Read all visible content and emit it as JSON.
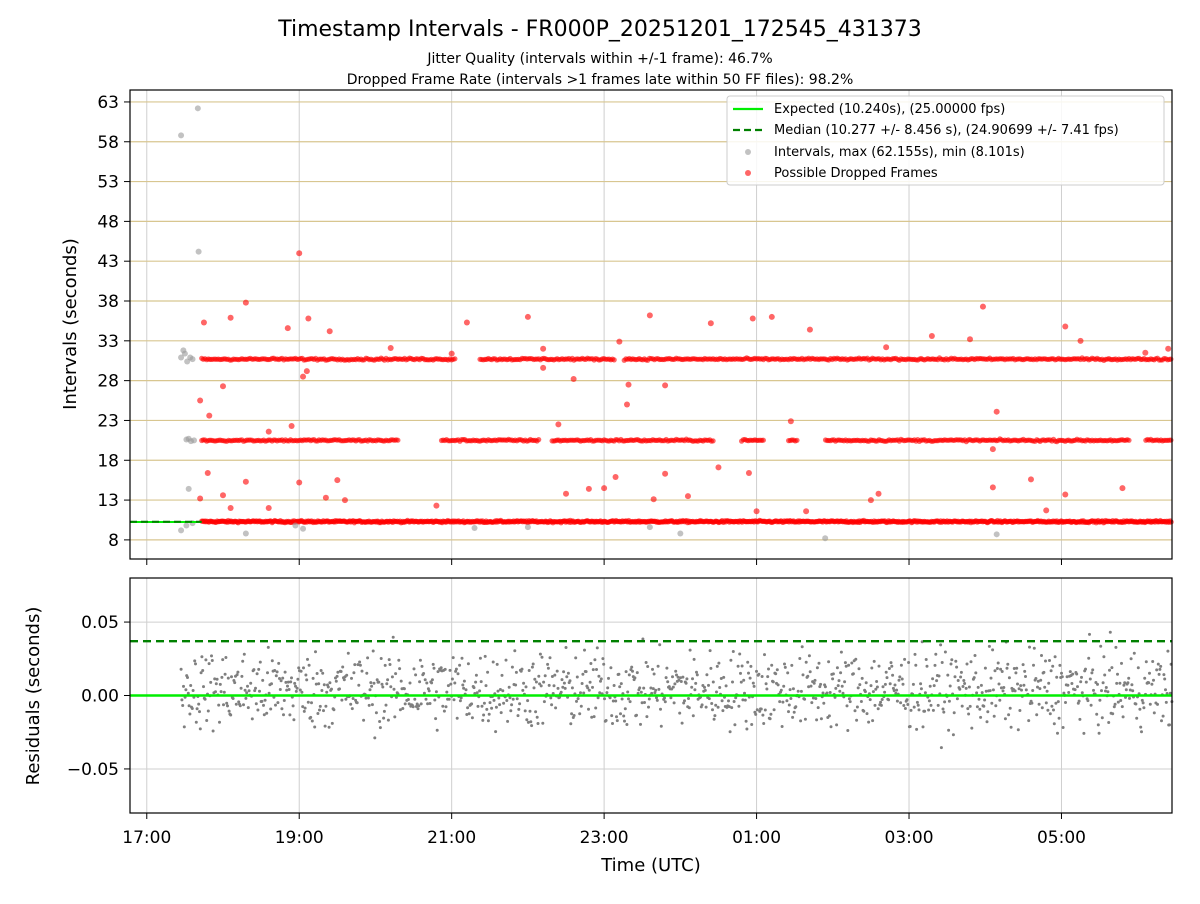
{
  "chart_data": {
    "type": "scatter",
    "title": "Timestamp Intervals - FR000P_20251201_172545_431373",
    "subtitle_lines": [
      "Jitter Quality (intervals within +/-1 frame): 46.7%",
      "Dropped Frame Rate (intervals >1 frames late within 50 FF files): 98.2%"
    ],
    "xlabel": "Time (UTC)",
    "x_unit": "hours since 17:00 UTC",
    "xlim": [
      -0.22,
      13.45
    ],
    "x_ticks": [
      {
        "value": 0,
        "label": "17:00"
      },
      {
        "value": 2,
        "label": "19:00"
      },
      {
        "value": 4,
        "label": "21:00"
      },
      {
        "value": 6,
        "label": "23:00"
      },
      {
        "value": 8,
        "label": "01:00"
      },
      {
        "value": 10,
        "label": "03:00"
      },
      {
        "value": 12,
        "label": "05:00"
      }
    ],
    "top_panel": {
      "ylabel": "Intervals (seconds)",
      "ylim": [
        5.6,
        64.5
      ],
      "y_ticks": [
        8,
        13,
        18,
        23,
        28,
        33,
        38,
        43,
        48,
        53,
        58,
        63
      ],
      "grid_color": "#d8c690",
      "legend_position": "top-right",
      "legend": [
        {
          "label": "Expected (10.240s), (25.00000 fps)",
          "style": "solid-line",
          "color": "#00ee00"
        },
        {
          "label": "Median (10.277 +/- 8.456 s), (24.90699 +/- 7.41 fps)",
          "style": "dashed-line",
          "color": "#008000"
        },
        {
          "label": "Intervals, max (62.155s), min (8.101s)",
          "style": "marker",
          "color": "#999999"
        },
        {
          "label": "Possible Dropped Frames",
          "style": "marker",
          "color": "#ff0000"
        }
      ],
      "expected_interval": 10.24,
      "median_interval": 10.277,
      "dropped_frame_bands": [
        10.3,
        20.5,
        30.7
      ],
      "dropped_frames_start_x": 0.72,
      "gray_intervals": [
        {
          "x": 0.45,
          "y": 58.8
        },
        {
          "x": 0.67,
          "y": 62.2
        },
        {
          "x": 0.68,
          "y": 44.2
        },
        {
          "x": 0.55,
          "y": 14.4
        },
        {
          "x": 0.52,
          "y": 20.6
        },
        {
          "x": 0.55,
          "y": 20.7
        },
        {
          "x": 0.58,
          "y": 20.4
        },
        {
          "x": 0.62,
          "y": 20.5
        },
        {
          "x": 0.45,
          "y": 30.9
        },
        {
          "x": 0.5,
          "y": 31.4
        },
        {
          "x": 0.53,
          "y": 30.4
        },
        {
          "x": 0.57,
          "y": 30.9
        },
        {
          "x": 0.48,
          "y": 31.8
        },
        {
          "x": 0.6,
          "y": 30.7
        },
        {
          "x": 0.45,
          "y": 9.2
        },
        {
          "x": 0.52,
          "y": 9.8
        },
        {
          "x": 0.6,
          "y": 10.1
        },
        {
          "x": 1.3,
          "y": 8.8
        },
        {
          "x": 2.05,
          "y": 9.4
        },
        {
          "x": 1.95,
          "y": 9.8
        },
        {
          "x": 4.3,
          "y": 9.5
        },
        {
          "x": 5.0,
          "y": 9.6
        },
        {
          "x": 6.6,
          "y": 9.6
        },
        {
          "x": 8.9,
          "y": 8.2
        },
        {
          "x": 11.15,
          "y": 8.7
        },
        {
          "x": 7.0,
          "y": 8.8
        }
      ],
      "red_outliers": [
        {
          "x": 0.75,
          "y": 35.3
        },
        {
          "x": 1.1,
          "y": 35.9
        },
        {
          "x": 1.3,
          "y": 37.8
        },
        {
          "x": 1.85,
          "y": 34.6
        },
        {
          "x": 2.0,
          "y": 44.0
        },
        {
          "x": 2.12,
          "y": 35.8
        },
        {
          "x": 2.4,
          "y": 34.2
        },
        {
          "x": 3.2,
          "y": 32.1
        },
        {
          "x": 4.0,
          "y": 31.4
        },
        {
          "x": 4.2,
          "y": 35.3
        },
        {
          "x": 5.0,
          "y": 36.0
        },
        {
          "x": 5.2,
          "y": 32.0
        },
        {
          "x": 6.2,
          "y": 32.9
        },
        {
          "x": 6.6,
          "y": 36.2
        },
        {
          "x": 7.4,
          "y": 35.2
        },
        {
          "x": 7.95,
          "y": 35.8
        },
        {
          "x": 8.2,
          "y": 36.0
        },
        {
          "x": 8.7,
          "y": 34.4
        },
        {
          "x": 9.7,
          "y": 32.2
        },
        {
          "x": 10.3,
          "y": 33.6
        },
        {
          "x": 10.8,
          "y": 33.2
        },
        {
          "x": 10.97,
          "y": 37.3
        },
        {
          "x": 12.05,
          "y": 34.8
        },
        {
          "x": 12.25,
          "y": 33.0
        },
        {
          "x": 13.1,
          "y": 31.5
        },
        {
          "x": 13.4,
          "y": 32.0
        },
        {
          "x": 0.82,
          "y": 23.6
        },
        {
          "x": 0.7,
          "y": 25.5
        },
        {
          "x": 1.0,
          "y": 27.3
        },
        {
          "x": 1.6,
          "y": 21.6
        },
        {
          "x": 1.9,
          "y": 22.3
        },
        {
          "x": 2.05,
          "y": 28.5
        },
        {
          "x": 2.1,
          "y": 29.2
        },
        {
          "x": 5.2,
          "y": 29.6
        },
        {
          "x": 5.4,
          "y": 22.5
        },
        {
          "x": 5.6,
          "y": 28.2
        },
        {
          "x": 6.3,
          "y": 25.0
        },
        {
          "x": 6.32,
          "y": 27.5
        },
        {
          "x": 6.8,
          "y": 27.4
        },
        {
          "x": 7.5,
          "y": 17.1
        },
        {
          "x": 7.9,
          "y": 16.4
        },
        {
          "x": 8.45,
          "y": 22.9
        },
        {
          "x": 11.15,
          "y": 24.1
        },
        {
          "x": 11.1,
          "y": 19.4
        },
        {
          "x": 0.8,
          "y": 16.4
        },
        {
          "x": 1.0,
          "y": 13.6
        },
        {
          "x": 1.3,
          "y": 15.3
        },
        {
          "x": 1.6,
          "y": 12.0
        },
        {
          "x": 2.0,
          "y": 15.2
        },
        {
          "x": 2.35,
          "y": 13.3
        },
        {
          "x": 2.5,
          "y": 15.5
        },
        {
          "x": 2.6,
          "y": 13.0
        },
        {
          "x": 3.8,
          "y": 12.3
        },
        {
          "x": 5.5,
          "y": 13.8
        },
        {
          "x": 5.8,
          "y": 14.4
        },
        {
          "x": 6.0,
          "y": 14.5
        },
        {
          "x": 6.15,
          "y": 15.9
        },
        {
          "x": 6.65,
          "y": 13.1
        },
        {
          "x": 6.8,
          "y": 16.3
        },
        {
          "x": 7.1,
          "y": 13.5
        },
        {
          "x": 8.0,
          "y": 11.6
        },
        {
          "x": 9.5,
          "y": 13.0
        },
        {
          "x": 9.6,
          "y": 13.8
        },
        {
          "x": 11.1,
          "y": 14.6
        },
        {
          "x": 11.6,
          "y": 15.6
        },
        {
          "x": 12.05,
          "y": 13.7
        },
        {
          "x": 12.8,
          "y": 14.5
        },
        {
          "x": 0.7,
          "y": 13.2
        },
        {
          "x": 1.1,
          "y": 12.0
        },
        {
          "x": 8.65,
          "y": 11.6
        },
        {
          "x": 11.8,
          "y": 11.7
        }
      ]
    },
    "bottom_panel": {
      "ylabel": "Residuals (seconds)",
      "ylim": [
        -0.08,
        0.08
      ],
      "y_ticks": [
        {
          "value": 0.05,
          "label": "0.05"
        },
        {
          "value": 0.0,
          "label": "0.00"
        },
        {
          "value": -0.05,
          "label": "−0.05"
        }
      ],
      "expected_residual": 0.0,
      "median_residual": 0.037,
      "residuals_start_x": 0.45,
      "marker_color": "#7f7f7f"
    }
  }
}
